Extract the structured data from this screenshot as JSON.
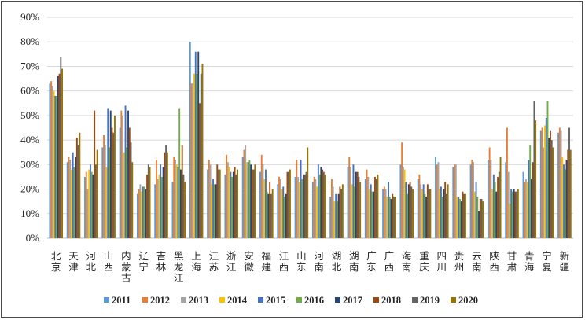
{
  "chart_data": {
    "type": "bar",
    "ylim": [
      0,
      90
    ],
    "yticks": [
      "0%",
      "10%",
      "20%",
      "30%",
      "40%",
      "50%",
      "60%",
      "70%",
      "80%",
      "90%"
    ],
    "grid": "horizontal",
    "legend_position": "bottom",
    "categories": [
      "北京",
      "天津",
      "河北",
      "山西",
      "内蒙古",
      "辽宁",
      "吉林",
      "黑龙江",
      "上海",
      "江苏",
      "浙江",
      "安徽",
      "福建",
      "江西",
      "山东",
      "河南",
      "湖北",
      "湖南",
      "广东",
      "广西",
      "海南",
      "重庆",
      "四川",
      "贵州",
      "云南",
      "陕西",
      "甘肃",
      "青海",
      "宁夏",
      "新疆"
    ],
    "colors": [
      "#5b9bd5",
      "#ed7d31",
      "#a5a5a5",
      "#ffc000",
      "#4472c4",
      "#70ad47",
      "#264478",
      "#9e480e",
      "#636363",
      "#997300"
    ],
    "series": [
      {
        "name": "2011",
        "values": [
          63,
          31,
          25,
          37,
          45,
          18,
          22,
          23,
          80,
          28,
          26,
          33,
          27,
          22,
          25,
          23,
          17,
          29,
          24,
          20,
          30,
          24,
          33,
          29,
          30,
          32,
          31,
          27,
          44,
          43
        ]
      },
      {
        "name": "2012",
        "values": [
          64,
          33,
          27,
          42,
          52,
          20,
          32,
          33,
          63,
          32,
          34,
          36,
          34,
          25,
          32,
          25,
          24,
          33,
          28,
          21,
          39,
          26,
          30,
          30,
          32,
          37,
          45,
          23,
          45,
          45
        ]
      },
      {
        "name": "2013",
        "values": [
          62,
          32,
          20,
          38,
          50,
          22,
          24,
          32,
          63,
          30,
          31,
          38,
          30,
          24,
          25,
          24,
          21,
          29,
          25,
          20,
          29,
          22,
          31,
          30,
          31,
          32,
          27,
          24,
          37,
          44
        ]
      },
      {
        "name": "2014",
        "values": [
          60,
          28,
          28,
          29,
          35,
          19,
          26,
          30,
          67,
          22,
          29,
          31,
          24,
          20,
          23,
          21,
          15,
          22,
          20,
          17,
          28,
          20,
          20,
          17,
          19,
          20,
          14,
          23,
          46,
          33
        ]
      },
      {
        "name": "2015",
        "values": [
          58,
          35,
          30,
          53,
          54,
          21,
          30,
          29,
          76,
          24,
          27,
          31,
          28,
          21,
          32,
          30,
          18,
          30,
          22,
          23,
          23,
          22,
          21,
          17,
          23,
          26,
          20,
          32,
          49,
          30
        ]
      },
      {
        "name": "2016",
        "values": [
          58,
          29,
          27,
          37,
          37,
          21,
          25,
          53,
          67,
          22,
          25,
          32,
          19,
          17,
          24,
          26,
          15,
          21,
          19,
          17,
          18,
          18,
          17,
          16,
          17,
          23,
          19,
          38,
          56,
          28
        ]
      },
      {
        "name": "2017",
        "values": [
          66,
          33,
          26,
          52,
          52,
          20,
          29,
          28,
          76,
          22,
          27,
          30,
          18,
          18,
          26,
          29,
          18,
          27,
          19,
          16,
          22,
          17,
          20,
          15,
          11,
          19,
          20,
          24,
          41,
          32
        ]
      },
      {
        "name": "2018",
        "values": [
          67,
          41,
          52,
          45,
          45,
          26,
          35,
          38,
          55,
          30,
          29,
          28,
          23,
          27,
          26,
          28,
          21,
          27,
          25,
          18,
          23,
          22,
          23,
          19,
          16,
          25,
          19,
          31,
          44,
          36
        ]
      },
      {
        "name": "2019",
        "values": [
          74,
          38,
          30,
          43,
          39,
          30,
          38,
          26,
          67,
          28,
          26,
          28,
          18,
          27,
          27,
          27,
          20,
          25,
          24,
          17,
          21,
          20,
          18,
          18,
          16,
          27,
          19,
          56,
          40,
          45
        ]
      },
      {
        "name": "2020",
        "values": [
          69,
          43,
          36,
          50,
          31,
          29,
          35,
          23,
          71,
          28,
          28,
          30,
          20,
          28,
          37,
          26,
          22,
          23,
          26,
          17,
          20,
          20,
          22,
          18,
          15,
          33,
          20,
          48,
          37,
          36
        ]
      }
    ]
  }
}
